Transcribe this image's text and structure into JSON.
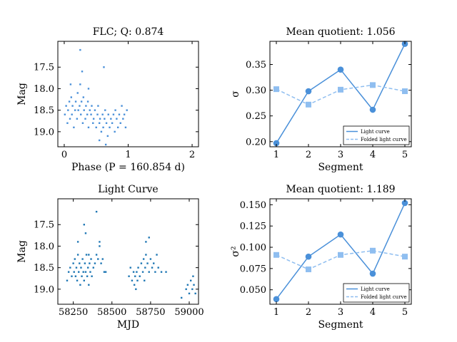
{
  "chart_data": [
    {
      "type": "scatter",
      "title": "FLC; Q: 0.874",
      "xlabel": "Phase (P = 160.854 d)",
      "ylabel": "Mag",
      "xlim": [
        -0.1,
        2.1
      ],
      "ylim": [
        19.35,
        16.9
      ],
      "y_inverted": true,
      "xticks": [
        0,
        1,
        2
      ],
      "xtick_labels": [
        "0",
        "1",
        "2"
      ],
      "yticks": [
        17.5,
        18.0,
        18.5,
        19.0
      ],
      "ytick_labels": [
        "17.5",
        "18.0",
        "18.5",
        "19.0"
      ],
      "color": "#4a90d9",
      "description_values": "Folded light curve repeated twice over phase 0-2; magnitudes concentrated between 18.2 and 18.9 with outliers to 17.1 and 19.3",
      "series": [
        {
          "x": [
            0.01,
            0.03,
            0.05,
            0.06,
            0.08,
            0.09,
            0.11,
            0.12,
            0.13,
            0.15,
            0.17,
            0.18,
            0.2,
            0.21,
            0.22,
            0.24,
            0.25,
            0.26,
            0.27,
            0.29,
            0.3,
            0.31,
            0.33,
            0.34,
            0.36,
            0.37,
            0.38,
            0.4,
            0.42,
            0.43,
            0.45,
            0.46,
            0.48,
            0.5,
            0.52,
            0.53,
            0.55,
            0.56,
            0.58,
            0.6,
            0.61,
            0.63,
            0.64,
            0.66,
            0.68,
            0.69,
            0.71,
            0.73,
            0.75,
            0.77,
            0.79,
            0.8,
            0.82,
            0.84,
            0.86,
            0.88,
            0.9,
            0.92,
            0.94,
            0.96,
            0.98,
            0.25,
            0.28,
            0.62,
            0.38,
            0.65,
            0.1,
            0.55
          ],
          "y": [
            18.6,
            18.4,
            18.8,
            18.5,
            18.3,
            18.7,
            18.2,
            18.6,
            18.4,
            18.9,
            18.5,
            18.3,
            18.7,
            18.1,
            18.5,
            18.4,
            17.9,
            18.6,
            18.3,
            18.8,
            18.2,
            18.5,
            18.7,
            18.4,
            18.6,
            18.3,
            18.9,
            18.5,
            18.6,
            18.4,
            18.8,
            18.7,
            18.5,
            18.9,
            18.6,
            18.4,
            18.8,
            18.7,
            19.0,
            18.6,
            18.9,
            18.7,
            18.5,
            18.8,
            19.1,
            18.6,
            18.9,
            18.7,
            18.8,
            18.6,
            19.0,
            18.5,
            18.7,
            18.9,
            18.6,
            18.8,
            18.4,
            18.7,
            18.6,
            18.9,
            18.5,
            17.1,
            17.6,
            17.5,
            18.0,
            19.3,
            17.9,
            19.2
          ]
        }
      ]
    },
    {
      "type": "line",
      "title": "Mean quotient: 1.056",
      "xlabel": "Segment",
      "ylabel": "σ",
      "xlim": [
        0.8,
        5.2
      ],
      "ylim": [
        0.19,
        0.395
      ],
      "xticks": [
        1,
        2,
        3,
        4,
        5
      ],
      "xtick_labels": [
        "1",
        "2",
        "3",
        "4",
        "5"
      ],
      "yticks": [
        0.2,
        0.25,
        0.3,
        0.35
      ],
      "ytick_labels": [
        "0.20",
        "0.25",
        "0.30",
        "0.35"
      ],
      "legend_position": "bottom-right",
      "series": [
        {
          "name": "Light curve",
          "x": [
            1,
            2,
            3,
            4,
            5
          ],
          "values": [
            0.197,
            0.298,
            0.34,
            0.262,
            0.39
          ],
          "color": "#4a90d9",
          "marker": "circle",
          "linestyle": "solid"
        },
        {
          "name": "Folded light curve",
          "x": [
            1,
            2,
            3,
            4,
            5
          ],
          "values": [
            0.302,
            0.272,
            0.301,
            0.31,
            0.298
          ],
          "color": "#8fbef0",
          "marker": "square",
          "linestyle": "dashed"
        }
      ]
    },
    {
      "type": "scatter",
      "title": "Light Curve",
      "xlabel": "MJD",
      "ylabel": "Mag",
      "xlim": [
        58150,
        59060
      ],
      "ylim": [
        19.35,
        16.9
      ],
      "y_inverted": true,
      "xticks": [
        58250,
        58500,
        58750,
        59000
      ],
      "xtick_labels": [
        "58250",
        "58500",
        "58750",
        "59000"
      ],
      "yticks": [
        17.5,
        18.0,
        18.5,
        19.0
      ],
      "ytick_labels": [
        "17.5",
        "18.0",
        "18.5",
        "19.0"
      ],
      "color": "#1f77b4",
      "series": [
        {
          "x": [
            58210,
            58220,
            58230,
            58240,
            58250,
            58255,
            58260,
            58265,
            58270,
            58275,
            58280,
            58285,
            58290,
            58295,
            58300,
            58305,
            58310,
            58315,
            58320,
            58325,
            58330,
            58335,
            58340,
            58345,
            58350,
            58355,
            58360,
            58365,
            58370,
            58380,
            58390,
            58400,
            58410,
            58420,
            58430,
            58440,
            58450,
            58460,
            58280,
            58320,
            58330,
            58350,
            58400,
            58420,
            58610,
            58620,
            58630,
            58640,
            58645,
            58650,
            58655,
            58660,
            58665,
            58670,
            58680,
            58690,
            58700,
            58705,
            58710,
            58715,
            58720,
            58730,
            58740,
            58750,
            58760,
            58770,
            58780,
            58790,
            58800,
            58820,
            58850,
            58720,
            58740,
            58980,
            58990,
            59000,
            59010,
            59020,
            59030,
            59040,
            58950,
            59025
          ],
          "y": [
            18.8,
            18.6,
            18.5,
            18.7,
            18.4,
            18.6,
            18.3,
            18.7,
            18.5,
            18.8,
            18.2,
            18.6,
            18.4,
            18.9,
            18.5,
            18.7,
            18.3,
            18.6,
            18.8,
            18.4,
            18.6,
            18.2,
            18.7,
            18.5,
            18.9,
            18.4,
            18.6,
            18.3,
            18.7,
            18.5,
            18.4,
            18.2,
            18.3,
            18.0,
            18.4,
            18.3,
            18.6,
            18.6,
            17.9,
            17.5,
            17.7,
            18.2,
            17.2,
            17.9,
            18.7,
            18.5,
            18.8,
            18.6,
            18.9,
            18.7,
            19.0,
            18.6,
            18.8,
            18.5,
            18.7,
            18.4,
            18.6,
            18.3,
            18.8,
            18.5,
            18.2,
            18.4,
            18.6,
            18.3,
            18.5,
            18.4,
            18.6,
            18.2,
            18.5,
            18.6,
            18.6,
            17.9,
            17.8,
            19.0,
            18.9,
            19.1,
            18.8,
            19.0,
            18.9,
            19.1,
            19.2,
            18.7
          ]
        }
      ]
    },
    {
      "type": "line",
      "title": "Mean quotient: 1.189",
      "xlabel": "Segment",
      "ylabel": "σ²",
      "xlim": [
        0.8,
        5.2
      ],
      "ylim": [
        0.033,
        0.157
      ],
      "xticks": [
        1,
        2,
        3,
        4,
        5
      ],
      "xtick_labels": [
        "1",
        "2",
        "3",
        "4",
        "5"
      ],
      "yticks": [
        0.05,
        0.075,
        0.1,
        0.125,
        0.15
      ],
      "ytick_labels": [
        "0.050",
        "0.075",
        "0.100",
        "0.125",
        "0.150"
      ],
      "legend_position": "bottom-right",
      "series": [
        {
          "name": "Light curve",
          "x": [
            1,
            2,
            3,
            4,
            5
          ],
          "values": [
            0.039,
            0.089,
            0.115,
            0.069,
            0.152
          ],
          "color": "#4a90d9",
          "marker": "circle",
          "linestyle": "solid"
        },
        {
          "name": "Folded light curve",
          "x": [
            1,
            2,
            3,
            4,
            5
          ],
          "values": [
            0.091,
            0.074,
            0.091,
            0.096,
            0.089
          ],
          "color": "#8fbef0",
          "marker": "square",
          "linestyle": "dashed"
        }
      ]
    }
  ]
}
